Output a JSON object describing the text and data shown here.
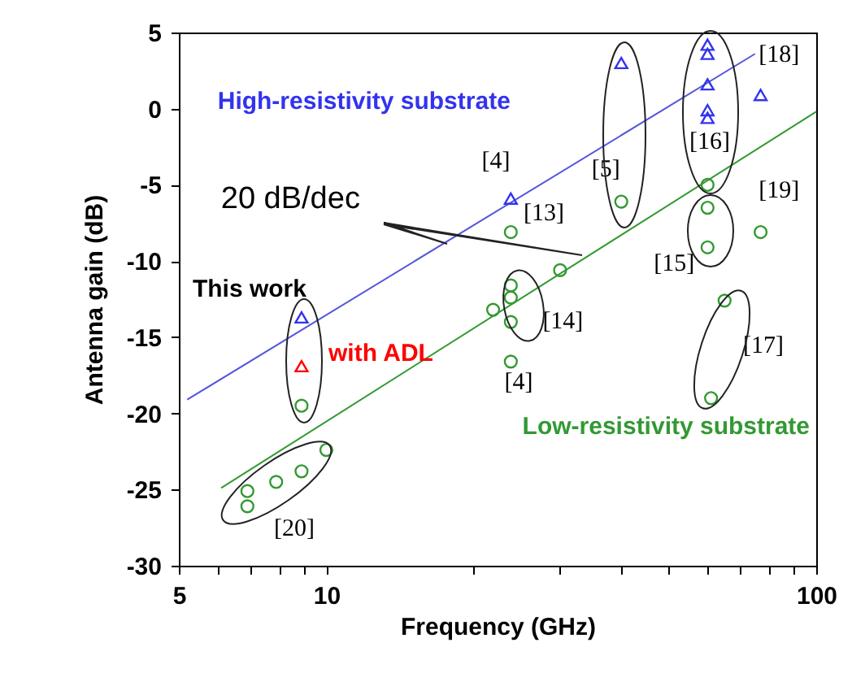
{
  "chart_data": {
    "type": "scatter",
    "xlabel": "Frequency (GHz)",
    "ylabel": "Antenna gain (dB)",
    "log": "x",
    "xlim": [
      5,
      100
    ],
    "ylim": [
      -30,
      5
    ],
    "xticks": [
      5,
      {
        "value": 6,
        "label": null
      },
      {
        "value": 7,
        "label": null
      },
      {
        "value": 8,
        "label": null
      },
      {
        "value": 9,
        "label": null
      },
      10,
      {
        "value": 20,
        "label": null
      },
      {
        "value": 30,
        "label": null
      },
      {
        "value": 40,
        "label": null
      },
      {
        "value": 50,
        "label": null
      },
      {
        "value": 60,
        "label": null
      },
      {
        "value": 70,
        "label": null
      },
      {
        "value": 80,
        "label": null
      },
      {
        "value": 90,
        "label": null
      },
      100
    ],
    "yticks": [
      -30,
      -25,
      -20,
      -15,
      -10,
      -5,
      0,
      5
    ],
    "grid": false,
    "series": [
      {
        "name": "High-resistivity substrate",
        "color": "#3333ee",
        "marker": "triangle",
        "x": [
          8.9,
          23.8,
          40,
          60,
          60,
          60,
          60,
          60,
          77
        ],
        "values": [
          -13.7,
          -5.9,
          3.0,
          4.2,
          3.6,
          1.6,
          -0.1,
          -0.6,
          0.9
        ]
      },
      {
        "name": "with ADL",
        "color": "#ff0000",
        "marker": "triangle",
        "x": [
          8.9
        ],
        "values": [
          -16.9
        ]
      },
      {
        "name": "Low-resistivity substrate",
        "type": "scatter",
        "color": "#339933",
        "marker": "circle",
        "x": [
          8.9,
          6.9,
          6.9,
          7.9,
          8.9,
          10,
          21.9,
          23.8,
          23.8,
          23.8,
          23.8,
          23.8,
          30,
          40,
          60,
          60,
          60,
          77,
          65,
          61
        ],
        "values": [
          -19.5,
          -25.1,
          -26.1,
          -24.5,
          -23.8,
          -22.4,
          -13.2,
          -11.6,
          -12.4,
          -14.0,
          -16.6,
          -8.1,
          -10.6,
          -6.1,
          -5.0,
          -6.5,
          -9.1,
          -8.1,
          -12.6,
          -19.0
        ]
      },
      {
        "type": "line",
        "color": "#5555dd",
        "x": [
          5.2,
          75
        ],
        "values": [
          -19.1,
          3.6
        ]
      },
      {
        "type": "line",
        "color": "#339933",
        "x": [
          6.1,
          100
        ],
        "values": [
          -24.9,
          -0.2
        ]
      }
    ],
    "annotations": [
      "This work",
      "20 dB/dec",
      "[4]",
      "[13]",
      "[5]",
      "[16]",
      "[18]",
      "[19]",
      "[15]",
      "[14]",
      "[4]",
      "[17]",
      "[20]"
    ]
  }
}
